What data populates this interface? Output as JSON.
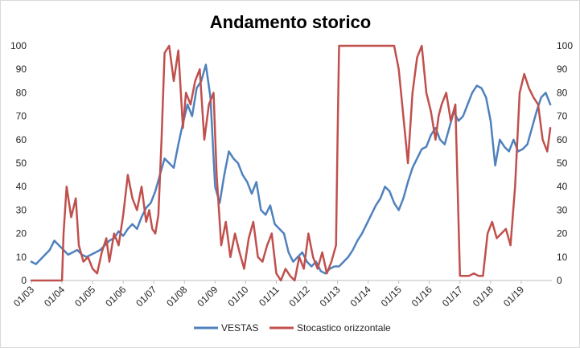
{
  "chart_data": {
    "type": "line",
    "title": "Andamento storico",
    "xlabel": "",
    "ylabel": "",
    "ylim": [
      0,
      100
    ],
    "y2lim": [
      0,
      100
    ],
    "yticks": [
      0,
      10,
      20,
      30,
      40,
      50,
      60,
      70,
      80,
      90,
      100
    ],
    "x_tick_labels": [
      "01/03",
      "01/04",
      "01/05",
      "01/06",
      "01/07",
      "01/08",
      "01/09",
      "01/10",
      "01/11",
      "01/12",
      "01/13",
      "01/14",
      "01/15",
      "01/16",
      "01/17",
      "01/18",
      "01/19"
    ],
    "xlim": [
      2003.0,
      2020.0
    ],
    "grid": false,
    "legend_position": "bottom",
    "colors": {
      "VESTAS": "#4f81bd",
      "Stocastico orizzontale": "#c0504d"
    },
    "series": [
      {
        "name": "VESTAS",
        "x": [
          2003.0,
          2003.15,
          2003.3,
          2003.45,
          2003.6,
          2003.75,
          2003.9,
          2004.05,
          2004.2,
          2004.35,
          2004.5,
          2004.65,
          2004.8,
          2004.95,
          2005.1,
          2005.25,
          2005.4,
          2005.55,
          2005.7,
          2005.85,
          2006.0,
          2006.15,
          2006.3,
          2006.45,
          2006.6,
          2006.75,
          2006.9,
          2007.05,
          2007.2,
          2007.35,
          2007.5,
          2007.65,
          2007.8,
          2007.95,
          2008.1,
          2008.25,
          2008.4,
          2008.55,
          2008.7,
          2008.85,
          2009.0,
          2009.15,
          2009.3,
          2009.45,
          2009.6,
          2009.75,
          2009.9,
          2010.05,
          2010.2,
          2010.35,
          2010.5,
          2010.65,
          2010.8,
          2010.95,
          2011.1,
          2011.25,
          2011.4,
          2011.55,
          2011.7,
          2011.85,
          2012.0,
          2012.15,
          2012.3,
          2012.45,
          2012.6,
          2012.75,
          2012.9,
          2013.05,
          2013.2,
          2013.35,
          2013.5,
          2013.65,
          2013.8,
          2013.95,
          2014.1,
          2014.25,
          2014.4,
          2014.55,
          2014.7,
          2014.85,
          2015.0,
          2015.15,
          2015.3,
          2015.45,
          2015.6,
          2015.75,
          2015.9,
          2016.05,
          2016.2,
          2016.35,
          2016.5,
          2016.65,
          2016.8,
          2016.95,
          2017.1,
          2017.25,
          2017.4,
          2017.55,
          2017.7,
          2017.85,
          2018.0,
          2018.15,
          2018.3,
          2018.45,
          2018.6,
          2018.75,
          2018.9,
          2019.05,
          2019.2,
          2019.35,
          2019.5,
          2019.65,
          2019.8,
          2019.95
        ],
        "values": [
          8,
          7,
          9,
          11,
          13,
          17,
          15,
          13,
          11,
          12,
          13,
          11,
          10,
          11,
          12,
          13,
          15,
          17,
          18,
          21,
          19,
          22,
          24,
          22,
          27,
          31,
          33,
          38,
          45,
          52,
          50,
          48,
          58,
          67,
          75,
          70,
          82,
          85,
          92,
          78,
          40,
          33,
          45,
          55,
          52,
          50,
          45,
          42,
          37,
          42,
          30,
          28,
          32,
          24,
          22,
          20,
          12,
          8,
          10,
          12,
          8,
          6,
          8,
          4,
          3,
          5,
          6,
          6,
          8,
          10,
          13,
          17,
          20,
          24,
          28,
          32,
          35,
          40,
          38,
          33,
          30,
          35,
          42,
          48,
          52,
          56,
          57,
          62,
          65,
          60,
          58,
          65,
          72,
          68,
          70,
          75,
          80,
          83,
          82,
          78,
          68,
          49,
          60,
          57,
          55,
          60,
          55,
          56,
          58,
          65,
          72,
          78,
          80,
          75
        ],
        "style": "line"
      },
      {
        "name": "Stocastico orizzontale",
        "x": [
          2003.0,
          2003.25,
          2003.5,
          2003.7,
          2003.85,
          2004.0,
          2004.05,
          2004.15,
          2004.3,
          2004.45,
          2004.55,
          2004.7,
          2004.85,
          2005.0,
          2005.15,
          2005.3,
          2005.45,
          2005.55,
          2005.7,
          2005.85,
          2006.0,
          2006.15,
          2006.3,
          2006.45,
          2006.6,
          2006.75,
          2006.85,
          2006.95,
          2007.05,
          2007.15,
          2007.25,
          2007.35,
          2007.5,
          2007.65,
          2007.8,
          2007.95,
          2008.05,
          2008.2,
          2008.35,
          2008.5,
          2008.65,
          2008.8,
          2008.95,
          2009.05,
          2009.2,
          2009.35,
          2009.5,
          2009.65,
          2009.8,
          2009.95,
          2010.1,
          2010.25,
          2010.4,
          2010.55,
          2010.7,
          2010.85,
          2011.0,
          2011.15,
          2011.3,
          2011.45,
          2011.6,
          2011.75,
          2011.9,
          2012.05,
          2012.2,
          2012.35,
          2012.5,
          2012.65,
          2012.8,
          2012.95,
          2013.0,
          2013.05,
          2013.2,
          2013.35,
          2013.5,
          2013.65,
          2013.8,
          2013.95,
          2014.1,
          2014.25,
          2014.4,
          2014.55,
          2014.7,
          2014.85,
          2015.0,
          2015.15,
          2015.3,
          2015.45,
          2015.6,
          2015.75,
          2015.9,
          2016.05,
          2016.2,
          2016.3,
          2016.4,
          2016.55,
          2016.7,
          2016.85,
          2017.0,
          2017.15,
          2017.3,
          2017.45,
          2017.6,
          2017.75,
          2017.9,
          2018.05,
          2018.2,
          2018.35,
          2018.5,
          2018.65,
          2018.8,
          2018.95,
          2019.1,
          2019.25,
          2019.4,
          2019.55,
          2019.7,
          2019.85,
          2019.95
        ],
        "values": [
          0,
          0,
          0,
          0,
          0,
          0,
          20,
          40,
          27,
          35,
          15,
          8,
          10,
          5,
          3,
          12,
          18,
          8,
          20,
          15,
          28,
          45,
          35,
          30,
          40,
          25,
          30,
          22,
          20,
          28,
          60,
          97,
          100,
          85,
          98,
          65,
          80,
          75,
          85,
          90,
          60,
          75,
          80,
          45,
          15,
          25,
          10,
          20,
          12,
          5,
          18,
          25,
          10,
          8,
          15,
          20,
          3,
          0,
          5,
          2,
          0,
          10,
          5,
          20,
          10,
          5,
          12,
          3,
          8,
          15,
          60,
          100,
          100,
          100,
          100,
          100,
          100,
          100,
          100,
          100,
          100,
          100,
          100,
          100,
          90,
          70,
          50,
          80,
          95,
          100,
          80,
          72,
          60,
          70,
          75,
          80,
          68,
          75,
          2,
          2,
          2,
          3,
          2,
          2,
          20,
          25,
          18,
          20,
          22,
          15,
          40,
          80,
          88,
          82,
          78,
          75,
          60,
          55,
          65
        ],
        "style": "line"
      }
    ]
  }
}
